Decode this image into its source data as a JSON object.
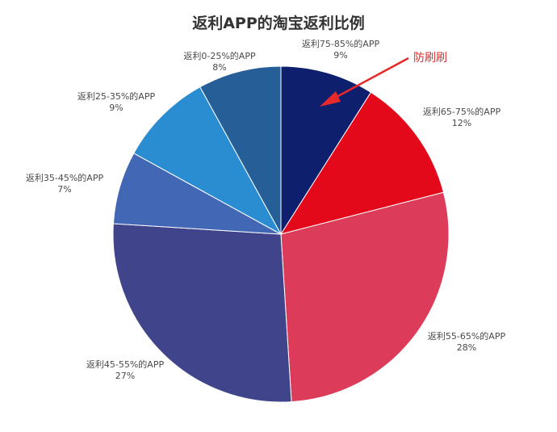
{
  "chart_data": {
    "type": "pie",
    "title": "返利APP的淘宝返利比例",
    "slices": [
      {
        "name": "返利75-85%的APP",
        "value": 9,
        "label": "9%",
        "color": "#0e1f6e"
      },
      {
        "name": "返利65-75%的APP",
        "value": 12,
        "label": "12%",
        "color": "#e3091a"
      },
      {
        "name": "返利55-65%的APP",
        "value": 28,
        "label": "28%",
        "color": "#dc3b59"
      },
      {
        "name": "返利45-55%的APP",
        "value": 27,
        "label": "27%",
        "color": "#3f448b"
      },
      {
        "name": "返利35-45%的APP",
        "value": 7,
        "label": "7%",
        "color": "#4267b4"
      },
      {
        "name": "返利25-35%的APP",
        "value": 9,
        "label": "9%",
        "color": "#2b8dd1"
      },
      {
        "name": "返利0-25%的APP",
        "value": 8,
        "label": "8%",
        "color": "#265f98"
      }
    ],
    "annotation": {
      "text": "防刷刷",
      "color": "#e8292b"
    }
  }
}
